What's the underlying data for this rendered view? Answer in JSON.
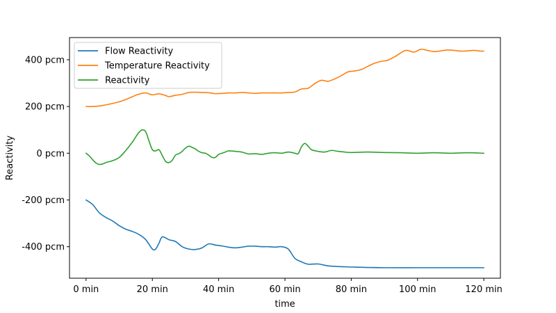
{
  "chart_data": {
    "type": "line",
    "title": "",
    "xlabel": "time",
    "ylabel": "Reactivity",
    "xlim": [
      -5,
      125
    ],
    "ylim": [
      -535,
      495
    ],
    "x_ticks": [
      {
        "value": 0,
        "label": "0 min"
      },
      {
        "value": 20,
        "label": "20 min"
      },
      {
        "value": 40,
        "label": "40 min"
      },
      {
        "value": 60,
        "label": "60 min"
      },
      {
        "value": 80,
        "label": "80 min"
      },
      {
        "value": 100,
        "label": "100 min"
      },
      {
        "value": 120,
        "label": "120 min"
      }
    ],
    "y_ticks": [
      {
        "value": -400,
        "label": "-400 pcm"
      },
      {
        "value": -200,
        "label": "-200 pcm"
      },
      {
        "value": 0,
        "label": "0 pcm"
      },
      {
        "value": 200,
        "label": "200 pcm"
      },
      {
        "value": 400,
        "label": "400 pcm"
      }
    ],
    "grid": false,
    "legend_position": "top-left",
    "series": [
      {
        "name": "Flow Reactivity",
        "color": "#1f77b4",
        "points": [
          [
            0,
            -200
          ],
          [
            2,
            -220
          ],
          [
            4,
            -255
          ],
          [
            6,
            -275
          ],
          [
            8,
            -290
          ],
          [
            10,
            -310
          ],
          [
            12,
            -325
          ],
          [
            14,
            -335
          ],
          [
            16,
            -348
          ],
          [
            18,
            -370
          ],
          [
            20,
            -410
          ],
          [
            21,
            -410
          ],
          [
            22,
            -385
          ],
          [
            23,
            -358
          ],
          [
            25,
            -370
          ],
          [
            27,
            -378
          ],
          [
            29,
            -400
          ],
          [
            31,
            -410
          ],
          [
            33,
            -412
          ],
          [
            35,
            -405
          ],
          [
            37,
            -388
          ],
          [
            39,
            -393
          ],
          [
            41,
            -397
          ],
          [
            43,
            -402
          ],
          [
            45,
            -405
          ],
          [
            47,
            -402
          ],
          [
            49,
            -398
          ],
          [
            51,
            -398
          ],
          [
            53,
            -400
          ],
          [
            55,
            -400
          ],
          [
            57,
            -402
          ],
          [
            59,
            -400
          ],
          [
            61,
            -410
          ],
          [
            63,
            -450
          ],
          [
            65,
            -465
          ],
          [
            67,
            -475
          ],
          [
            70,
            -474
          ],
          [
            73,
            -482
          ],
          [
            76,
            -485
          ],
          [
            80,
            -487
          ],
          [
            85,
            -489
          ],
          [
            90,
            -490
          ],
          [
            100,
            -490
          ],
          [
            110,
            -490
          ],
          [
            120,
            -490
          ]
        ]
      },
      {
        "name": "Temperature Reactivity",
        "color": "#ff7f0e",
        "points": [
          [
            0,
            200
          ],
          [
            2,
            200
          ],
          [
            4,
            202
          ],
          [
            6,
            207
          ],
          [
            8,
            213
          ],
          [
            10,
            220
          ],
          [
            12,
            230
          ],
          [
            14,
            242
          ],
          [
            16,
            253
          ],
          [
            18,
            258
          ],
          [
            20,
            250
          ],
          [
            22,
            254
          ],
          [
            24,
            247
          ],
          [
            25,
            242
          ],
          [
            27,
            248
          ],
          [
            29,
            252
          ],
          [
            31,
            260
          ],
          [
            33,
            261
          ],
          [
            35,
            260
          ],
          [
            37,
            259
          ],
          [
            39,
            255
          ],
          [
            41,
            256
          ],
          [
            43,
            258
          ],
          [
            45,
            258
          ],
          [
            47,
            260
          ],
          [
            49,
            258
          ],
          [
            51,
            256
          ],
          [
            53,
            258
          ],
          [
            55,
            258
          ],
          [
            57,
            258
          ],
          [
            59,
            258
          ],
          [
            61,
            260
          ],
          [
            63,
            262
          ],
          [
            65,
            275
          ],
          [
            67,
            278
          ],
          [
            69,
            298
          ],
          [
            71,
            312
          ],
          [
            73,
            308
          ],
          [
            75,
            318
          ],
          [
            77,
            332
          ],
          [
            79,
            348
          ],
          [
            81,
            352
          ],
          [
            83,
            358
          ],
          [
            85,
            372
          ],
          [
            87,
            385
          ],
          [
            89,
            393
          ],
          [
            91,
            398
          ],
          [
            93,
            412
          ],
          [
            95,
            430
          ],
          [
            96,
            438
          ],
          [
            97,
            440
          ],
          [
            99,
            433
          ],
          [
            101,
            445
          ],
          [
            103,
            440
          ],
          [
            105,
            435
          ],
          [
            107,
            438
          ],
          [
            109,
            442
          ],
          [
            111,
            440
          ],
          [
            113,
            437
          ],
          [
            115,
            438
          ],
          [
            117,
            440
          ],
          [
            119,
            437
          ],
          [
            120,
            437
          ]
        ]
      },
      {
        "name": "Reactivity",
        "color": "#2ca02c",
        "points": [
          [
            0,
            0
          ],
          [
            1,
            -12
          ],
          [
            2,
            -28
          ],
          [
            3,
            -42
          ],
          [
            4,
            -48
          ],
          [
            5,
            -46
          ],
          [
            6,
            -40
          ],
          [
            8,
            -32
          ],
          [
            10,
            -18
          ],
          [
            12,
            12
          ],
          [
            14,
            48
          ],
          [
            15,
            70
          ],
          [
            16,
            90
          ],
          [
            17,
            100
          ],
          [
            18,
            92
          ],
          [
            19,
            52
          ],
          [
            20,
            15
          ],
          [
            21,
            10
          ],
          [
            22,
            15
          ],
          [
            23,
            -10
          ],
          [
            24,
            -35
          ],
          [
            25,
            -40
          ],
          [
            26,
            -30
          ],
          [
            27,
            -8
          ],
          [
            28,
            -2
          ],
          [
            29,
            8
          ],
          [
            30,
            22
          ],
          [
            31,
            30
          ],
          [
            32,
            25
          ],
          [
            33,
            18
          ],
          [
            34,
            8
          ],
          [
            35,
            2
          ],
          [
            36,
            0
          ],
          [
            37,
            -8
          ],
          [
            38,
            -18
          ],
          [
            39,
            -18
          ],
          [
            40,
            -5
          ],
          [
            41,
            0
          ],
          [
            42,
            5
          ],
          [
            43,
            10
          ],
          [
            45,
            8
          ],
          [
            47,
            5
          ],
          [
            49,
            -3
          ],
          [
            51,
            -2
          ],
          [
            53,
            -5
          ],
          [
            55,
            0
          ],
          [
            57,
            2
          ],
          [
            59,
            0
          ],
          [
            61,
            5
          ],
          [
            63,
            0
          ],
          [
            64,
            -2
          ],
          [
            65,
            28
          ],
          [
            66,
            42
          ],
          [
            67,
            30
          ],
          [
            68,
            15
          ],
          [
            70,
            8
          ],
          [
            72,
            5
          ],
          [
            74,
            12
          ],
          [
            76,
            8
          ],
          [
            78,
            5
          ],
          [
            80,
            3
          ],
          [
            85,
            5
          ],
          [
            90,
            3
          ],
          [
            95,
            2
          ],
          [
            100,
            0
          ],
          [
            105,
            2
          ],
          [
            110,
            0
          ],
          [
            115,
            2
          ],
          [
            120,
            0
          ]
        ]
      }
    ]
  }
}
